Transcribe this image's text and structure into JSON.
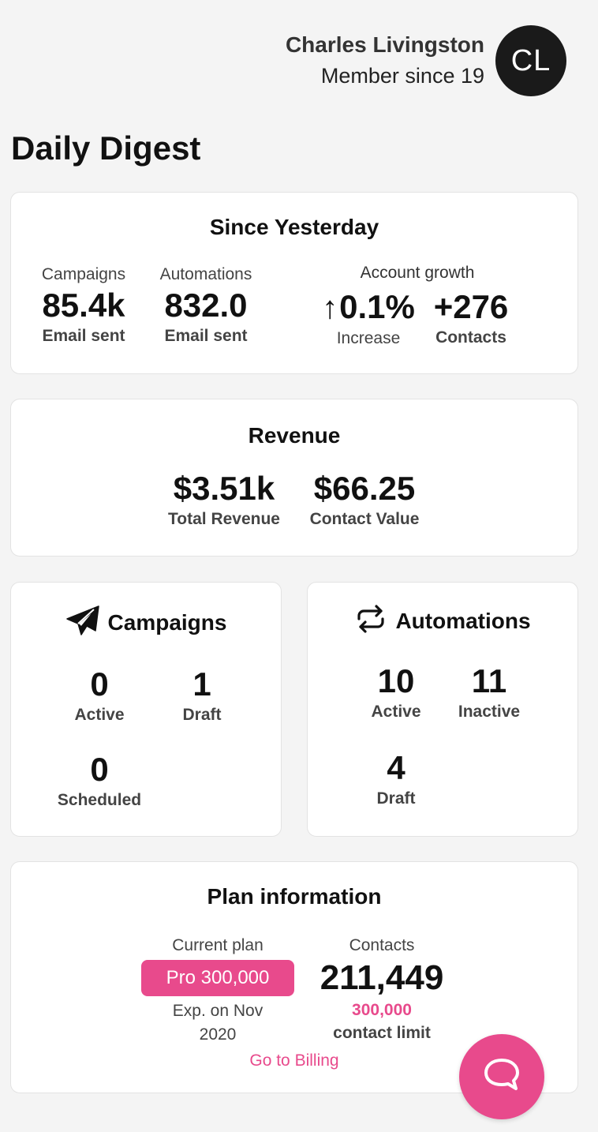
{
  "profile": {
    "name": "Charles Livingston",
    "member_since": "Member since 19",
    "initials": "CL"
  },
  "page_title": "Daily Digest",
  "since_yesterday": {
    "title": "Since Yesterday",
    "campaigns": {
      "label": "Campaigns",
      "value": "85.4k",
      "sub": "Email sent"
    },
    "automations": {
      "label": "Automations",
      "value": "832.0",
      "sub": "Email sent"
    },
    "growth": {
      "label": "Account growth",
      "arrow_icon": "arrow-up-icon",
      "increase_value": "0.1%",
      "increase_label": "Increase",
      "contacts_value": "+276",
      "contacts_label": "Contacts"
    }
  },
  "revenue": {
    "title": "Revenue",
    "total": {
      "value": "$3.51k",
      "label": "Total Revenue"
    },
    "contact_value": {
      "value": "$66.25",
      "label": "Contact Value"
    }
  },
  "campaigns": {
    "title": "Campaigns",
    "icon": "paper-plane-icon",
    "active": {
      "value": "0",
      "label": "Active"
    },
    "draft": {
      "value": "1",
      "label": "Draft"
    },
    "scheduled": {
      "value": "0",
      "label": "Scheduled"
    }
  },
  "automations": {
    "title": "Automations",
    "icon": "repeat-icon",
    "active": {
      "value": "10",
      "label": "Active"
    },
    "inactive": {
      "value": "11",
      "label": "Inactive"
    },
    "draft": {
      "value": "4",
      "label": "Draft"
    }
  },
  "plan": {
    "title": "Plan information",
    "current_label": "Current plan",
    "plan_name": "Pro 300,000",
    "expiry": "Exp. on Nov",
    "expiry_year": "2020",
    "contacts_label": "Contacts",
    "contacts_value": "211,449",
    "limit_value": "300,000",
    "limit_label": "contact limit",
    "billing_link": "Go to Billing"
  },
  "chat": {
    "icon": "chat-bubble-icon"
  },
  "colors": {
    "accent": "#e84a8c",
    "avatar_bg": "#1a1a1a",
    "page_bg": "#f4f4f4"
  }
}
